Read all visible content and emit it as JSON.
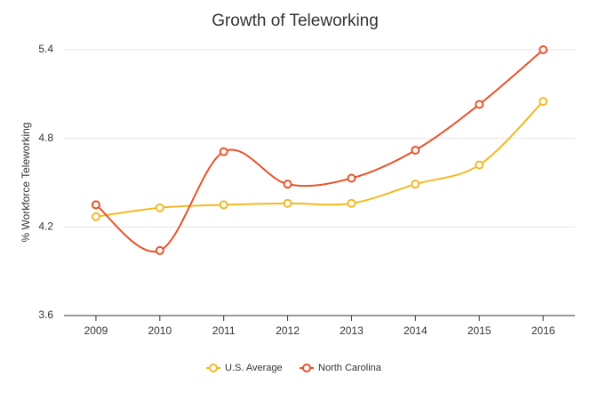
{
  "chart_data": {
    "type": "line",
    "title": "Growth of Teleworking",
    "y_label": "% Workforce Teleworking",
    "categories": [
      "2009",
      "2010",
      "2011",
      "2012",
      "2013",
      "2014",
      "2015",
      "2016"
    ],
    "series": [
      {
        "name": "U.S. Average",
        "color": "#f5b823",
        "values": [
          4.27,
          4.33,
          4.35,
          4.36,
          4.36,
          4.49,
          4.62,
          5.05
        ]
      },
      {
        "name": "North Carolina",
        "color": "#e8532b",
        "values": [
          4.35,
          4.04,
          4.71,
          4.49,
          4.53,
          4.72,
          5.03,
          5.4
        ]
      }
    ],
    "ylim": [
      3.6,
      5.4
    ],
    "yticks": [
      3.6,
      4.2,
      4.8,
      5.4
    ],
    "grid": true,
    "smooth": true,
    "legend": "bottom"
  }
}
